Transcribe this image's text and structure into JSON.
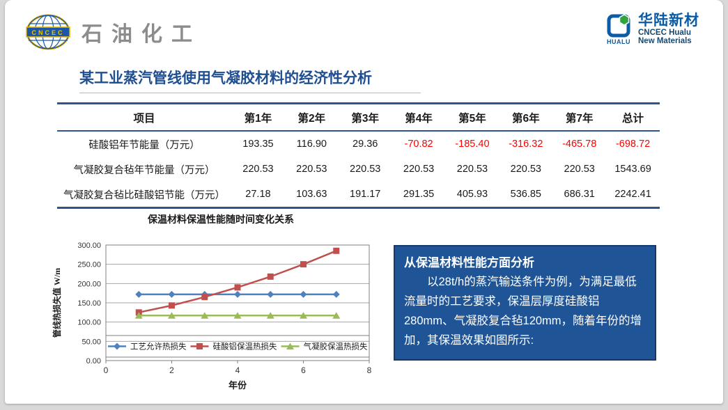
{
  "page": {
    "title": "某工业蒸汽管线使用气凝胶材料的经济性分析",
    "title_color": "#1F4E91"
  },
  "header": {
    "left_logo": {
      "emblem_text": "CNCEC",
      "brand_text": "石油化工"
    },
    "right_logo": {
      "icon_text": "HUALU",
      "brand_cn": "华陆新材",
      "brand_en_line1": "CNCEC Hualu",
      "brand_en_line2": "New Materials"
    }
  },
  "icons": {
    "left": "cncec-globe-emblem",
    "right": "hualu-square-hexagon-logo"
  },
  "table": {
    "columns": [
      "项目",
      "第1年",
      "第2年",
      "第3年",
      "第4年",
      "第5年",
      "第6年",
      "第7年",
      "总计"
    ],
    "rows": [
      {
        "label": "硅酸铝年节能量（万元）",
        "values": [
          "193.35",
          "116.90",
          "29.36",
          "-70.82",
          "-185.40",
          "-316.32",
          "-465.78",
          "-698.72"
        ]
      },
      {
        "label": "气凝胶复合毡年节能量（万元）",
        "values": [
          "220.53",
          "220.53",
          "220.53",
          "220.53",
          "220.53",
          "220.53",
          "220.53",
          "1543.69"
        ]
      },
      {
        "label": "气凝胶复合毡比硅酸铝节能（万元）",
        "values": [
          "27.18",
          "103.63",
          "191.17",
          "291.35",
          "405.93",
          "536.85",
          "686.31",
          "2242.41"
        ]
      }
    ],
    "negative_color": "#FF0000",
    "border_color": "#2F5488"
  },
  "chart_data": {
    "type": "line",
    "title": "保温材料保温性能随时间变化关系",
    "xlabel": "年份",
    "ylabel": "管线热损失值 W/m",
    "xlim": [
      0,
      8
    ],
    "ylim": [
      0,
      300
    ],
    "x_ticks": [
      0,
      2,
      4,
      6,
      8
    ],
    "y_ticks": [
      "0.00",
      "50.00",
      "100.00",
      "150.00",
      "200.00",
      "250.00",
      "300.00"
    ],
    "grid": true,
    "legend_position": "bottom-inside",
    "x": [
      1,
      2,
      3,
      4,
      5,
      6,
      7
    ],
    "series": [
      {
        "name": "工艺允许热损失",
        "color": "#4F81BD",
        "marker": "diamond",
        "values": [
          172,
          172,
          172,
          172,
          172,
          172,
          172
        ]
      },
      {
        "name": "硅酸铝保温热损失",
        "color": "#C0504D",
        "marker": "square",
        "values": [
          125,
          143,
          165,
          190,
          218,
          250,
          285
        ]
      },
      {
        "name": "气凝胶保温热损失",
        "color": "#9BBB59",
        "marker": "triangle",
        "values": [
          117,
          117,
          117,
          117,
          117,
          117,
          117
        ]
      }
    ]
  },
  "info_box": {
    "heading": "从保温材料性能方面分析",
    "body": "以28t/h的蒸汽输送条件为例，为满足最低流量时的工艺要求，保温层厚度硅酸铝280mm、气凝胶复合毡120mm，随着年份的增加，其保温效果如图所示:",
    "bg": "#1F5597"
  }
}
